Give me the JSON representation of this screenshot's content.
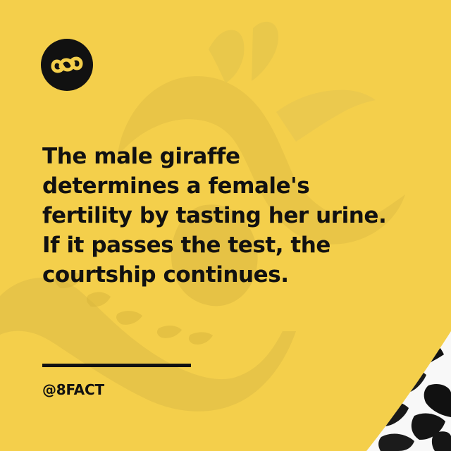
{
  "card": {
    "background_color": "#f4cf4b",
    "text_color": "#111111",
    "logo_icon": "infinity-8-icon",
    "background_image": "giraffe-illustration",
    "fact_lines": [
      "The male giraffe",
      "determines a female's",
      "fertility by tasting her urine.",
      "If it passes the test, the",
      "courtship continues."
    ],
    "handle": "@8FACT"
  }
}
